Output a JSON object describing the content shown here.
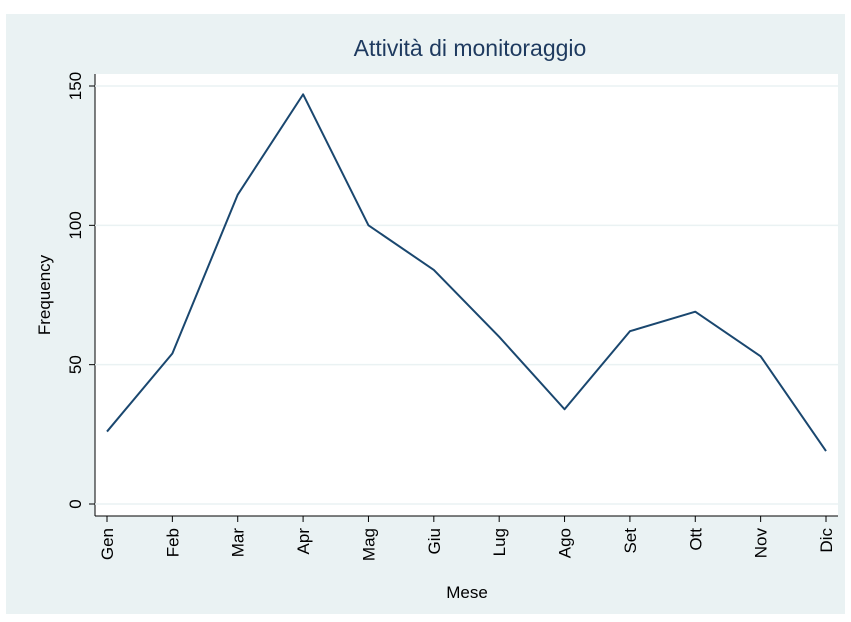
{
  "chart_data": {
    "type": "line",
    "title": "Attività di monitoraggio",
    "x_label": "Mese",
    "y_label": "Frequency",
    "categories": [
      "Gen",
      "Feb",
      "Mar",
      "Apr",
      "Mag",
      "Giu",
      "Lug",
      "Ago",
      "Set",
      "Ott",
      "Nov",
      "Dic"
    ],
    "values": [
      26,
      54,
      111,
      147,
      100,
      84,
      60,
      34,
      62,
      69,
      53,
      19
    ],
    "color": "#1a476f",
    "ylim": [
      0,
      150
    ],
    "yticks": [
      0,
      50,
      100,
      150
    ],
    "grid": true
  }
}
